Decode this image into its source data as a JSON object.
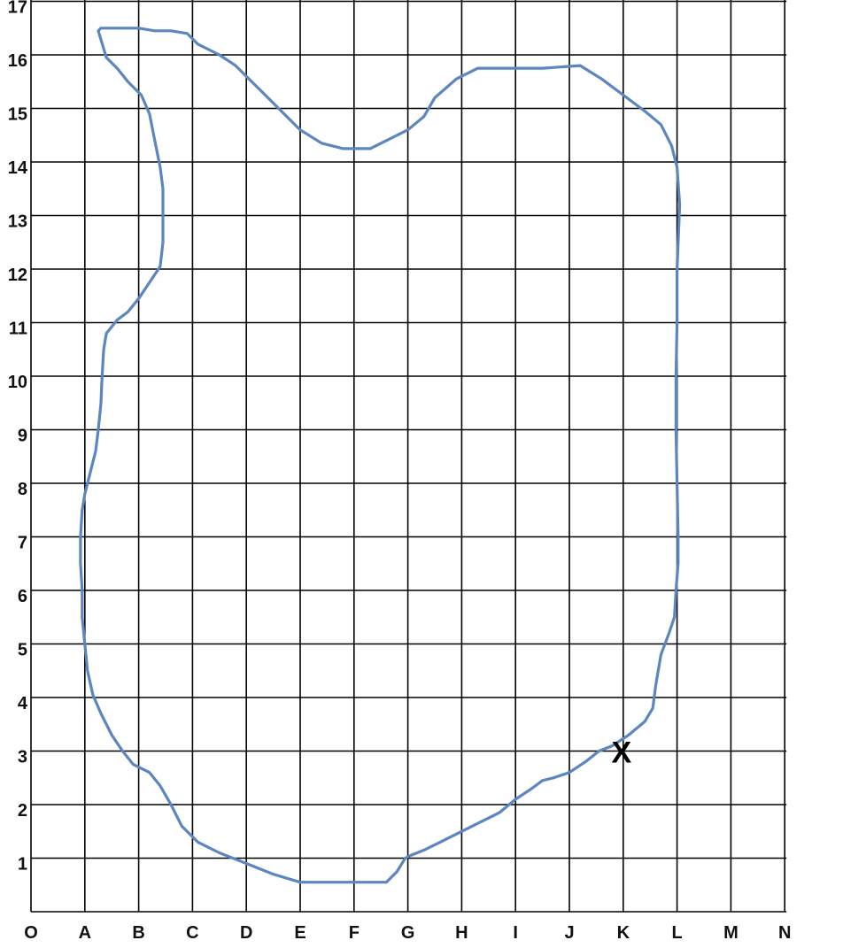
{
  "grid": {
    "x_labels": [
      "O",
      "A",
      "B",
      "C",
      "D",
      "E",
      "F",
      "G",
      "H",
      "I",
      "J",
      "K",
      "L",
      "M",
      "N"
    ],
    "y_labels": [
      "1",
      "2",
      "3",
      "4",
      "5",
      "6",
      "7",
      "8",
      "9",
      "10",
      "11",
      "12",
      "13",
      "14",
      "15",
      "16",
      "17"
    ]
  },
  "outline": {
    "color": "#5b86bf",
    "points": [
      [
        1.25,
        16.45
      ],
      [
        1.3,
        16.5
      ],
      [
        1.8,
        16.5
      ],
      [
        2.0,
        16.5
      ],
      [
        2.3,
        16.45
      ],
      [
        2.6,
        16.45
      ],
      [
        2.9,
        16.4
      ],
      [
        3.1,
        16.2
      ],
      [
        3.5,
        16.0
      ],
      [
        3.8,
        15.8
      ],
      [
        4.0,
        15.6
      ],
      [
        4.3,
        15.3
      ],
      [
        4.6,
        15.0
      ],
      [
        5.0,
        14.6
      ],
      [
        5.4,
        14.35
      ],
      [
        5.8,
        14.25
      ],
      [
        6.3,
        14.25
      ],
      [
        6.7,
        14.45
      ],
      [
        7.0,
        14.6
      ],
      [
        7.3,
        14.85
      ],
      [
        7.5,
        15.2
      ],
      [
        7.9,
        15.55
      ],
      [
        8.3,
        15.75
      ],
      [
        9.0,
        15.75
      ],
      [
        9.5,
        15.75
      ],
      [
        10.2,
        15.8
      ],
      [
        10.6,
        15.55
      ],
      [
        11.0,
        15.25
      ],
      [
        11.4,
        14.95
      ],
      [
        11.7,
        14.7
      ],
      [
        11.9,
        14.3
      ],
      [
        12.0,
        13.9
      ],
      [
        12.05,
        13.2
      ],
      [
        12.0,
        12.0
      ],
      [
        12.0,
        11.0
      ],
      [
        11.98,
        10.0
      ],
      [
        11.98,
        9.0
      ],
      [
        12.0,
        8.0
      ],
      [
        12.02,
        7.0
      ],
      [
        12.02,
        6.5
      ],
      [
        11.98,
        6.0
      ],
      [
        11.95,
        5.5
      ],
      [
        11.85,
        5.2
      ],
      [
        11.7,
        4.8
      ],
      [
        11.65,
        4.5
      ],
      [
        11.6,
        4.2
      ],
      [
        11.55,
        3.8
      ],
      [
        11.4,
        3.55
      ],
      [
        11.1,
        3.3
      ],
      [
        10.8,
        3.1
      ],
      [
        10.55,
        3.0
      ],
      [
        10.3,
        2.8
      ],
      [
        10.0,
        2.6
      ],
      [
        9.7,
        2.5
      ],
      [
        9.5,
        2.45
      ],
      [
        9.3,
        2.3
      ],
      [
        9.0,
        2.1
      ],
      [
        8.7,
        1.85
      ],
      [
        8.3,
        1.65
      ],
      [
        8.0,
        1.5
      ],
      [
        7.6,
        1.3
      ],
      [
        7.3,
        1.15
      ],
      [
        7.05,
        1.05
      ],
      [
        6.95,
        1.0
      ],
      [
        6.8,
        0.75
      ],
      [
        6.6,
        0.55
      ],
      [
        6.0,
        0.55
      ],
      [
        5.5,
        0.55
      ],
      [
        5.3,
        0.55
      ],
      [
        5.0,
        0.55
      ],
      [
        4.5,
        0.7
      ],
      [
        4.0,
        0.9
      ],
      [
        3.5,
        1.1
      ],
      [
        3.1,
        1.3
      ],
      [
        2.8,
        1.6
      ],
      [
        2.6,
        2.0
      ],
      [
        2.4,
        2.35
      ],
      [
        2.2,
        2.6
      ],
      [
        1.9,
        2.75
      ],
      [
        1.7,
        3.0
      ],
      [
        1.5,
        3.3
      ],
      [
        1.3,
        3.7
      ],
      [
        1.15,
        4.05
      ],
      [
        1.05,
        4.5
      ],
      [
        1.0,
        5.0
      ],
      [
        0.95,
        5.5
      ],
      [
        0.95,
        6.0
      ],
      [
        0.92,
        6.5
      ],
      [
        0.92,
        7.0
      ],
      [
        0.95,
        7.5
      ],
      [
        1.0,
        7.8
      ],
      [
        1.1,
        8.2
      ],
      [
        1.2,
        8.6
      ],
      [
        1.25,
        9.0
      ],
      [
        1.3,
        9.5
      ],
      [
        1.32,
        10.0
      ],
      [
        1.35,
        10.5
      ],
      [
        1.4,
        10.8
      ],
      [
        1.6,
        11.05
      ],
      [
        1.8,
        11.2
      ],
      [
        2.0,
        11.45
      ],
      [
        2.2,
        11.75
      ],
      [
        2.4,
        12.05
      ],
      [
        2.45,
        12.5
      ],
      [
        2.45,
        13.0
      ],
      [
        2.45,
        13.5
      ],
      [
        2.4,
        13.9
      ],
      [
        2.3,
        14.4
      ],
      [
        2.2,
        14.9
      ],
      [
        2.05,
        15.25
      ],
      [
        1.8,
        15.5
      ],
      [
        1.6,
        15.75
      ],
      [
        1.4,
        15.95
      ],
      [
        1.25,
        16.45
      ]
    ]
  },
  "marker": {
    "label": "X",
    "x": 11,
    "y": 3
  }
}
